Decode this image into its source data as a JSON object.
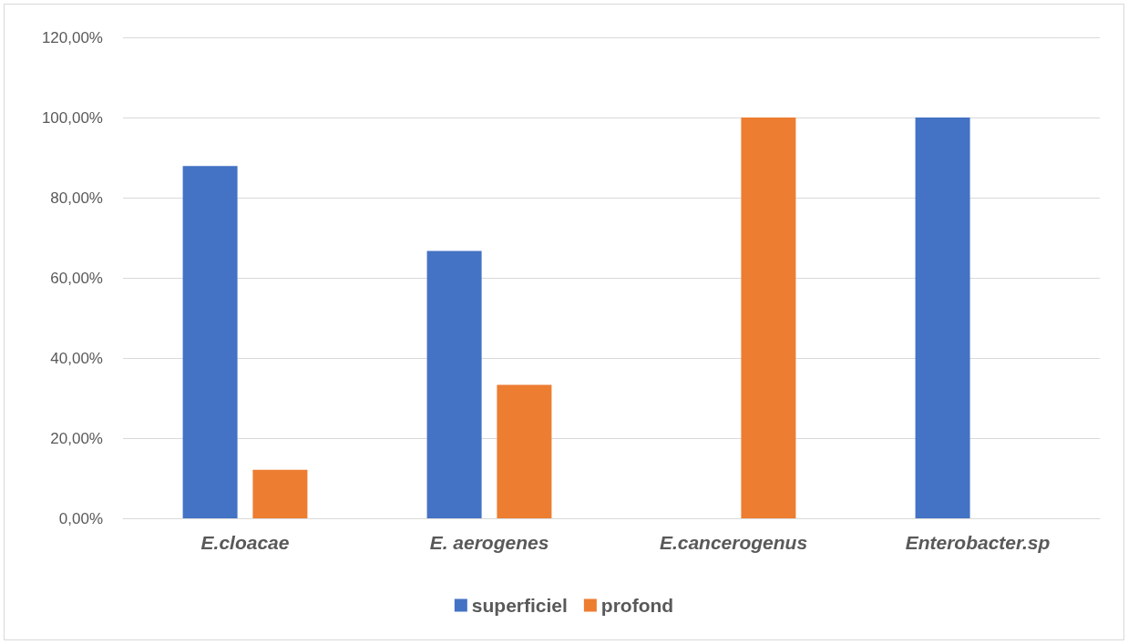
{
  "chart_data": {
    "type": "bar",
    "categories": [
      "E.cloacae",
      "E. aerogenes",
      "E.cancerogenus",
      "Enterobacter.sp"
    ],
    "series": [
      {
        "name": "superficiel",
        "color": "#4472c4",
        "values": [
          87.9,
          66.7,
          0,
          100
        ]
      },
      {
        "name": "profond",
        "color": "#ed7d31",
        "values": [
          12.1,
          33.3,
          100,
          0
        ]
      }
    ],
    "ylim": [
      0,
      120
    ],
    "yticks": [
      {
        "value": 0,
        "label": "0,00%"
      },
      {
        "value": 20,
        "label": "20,00%"
      },
      {
        "value": 40,
        "label": "40,00%"
      },
      {
        "value": 60,
        "label": "60,00%"
      },
      {
        "value": 80,
        "label": "80,00%"
      },
      {
        "value": 100,
        "label": "100,00%"
      },
      {
        "value": 120,
        "label": "120,00%"
      }
    ],
    "grid": "y",
    "legend": "bottom"
  }
}
